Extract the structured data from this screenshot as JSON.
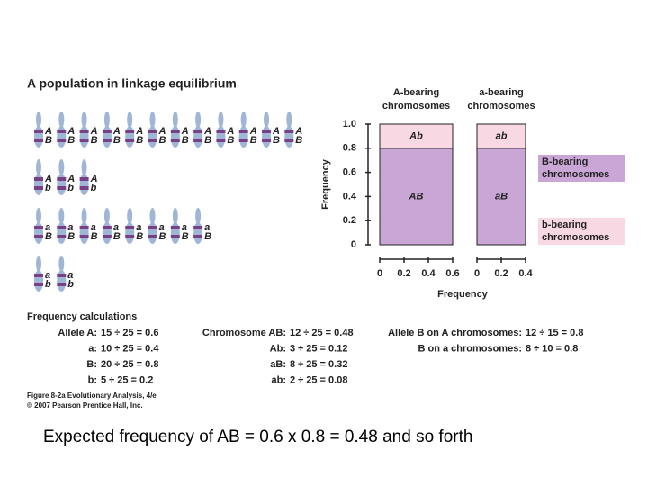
{
  "figure": {
    "title": "A population in linkage equilibrium",
    "chromosome_groups": [
      {
        "top": "A",
        "bottom": "B",
        "count": 12
      },
      {
        "top": "A",
        "bottom": "b",
        "count": 3
      },
      {
        "top": "a",
        "bottom": "B",
        "count": 8
      },
      {
        "top": "a",
        "bottom": "b",
        "count": 2
      }
    ],
    "mosaic": {
      "column_labels": [
        [
          "A-bearing",
          "chromosomes"
        ],
        [
          "a-bearing",
          "chromosomes"
        ]
      ],
      "row_labels": [
        [
          "B-bearing",
          "chromosomes"
        ],
        [
          "b-bearing",
          "chromosomes"
        ]
      ],
      "row_colors": [
        "#c9a6d6",
        "#f8d8e2"
      ],
      "ylabel": "Frequency",
      "xlabel": "Frequency",
      "ylim": [
        0,
        1
      ],
      "yticks": [
        0,
        0.2,
        0.4,
        0.6,
        0.8,
        {
          "value": 1,
          "label": "1.0"
        }
      ],
      "columns": [
        {
          "width": 0.6,
          "xticks": [
            0,
            0.2,
            0.4,
            0.6
          ],
          "cells": [
            {
              "label": "AB",
              "value": 0.8
            },
            {
              "label": "Ab",
              "value": 0.2
            }
          ]
        },
        {
          "width": 0.4,
          "xticks": [
            0,
            0.2,
            0.4
          ],
          "cells": [
            {
              "label": "aB",
              "value": 0.8
            },
            {
              "label": "ab",
              "value": 0.2
            }
          ]
        }
      ]
    },
    "calculations": {
      "heading": "Frequency calculations",
      "alleles": [
        [
          "Allele A:",
          "15 ÷ 25 = 0.6"
        ],
        [
          "a:",
          "10 ÷ 25 = 0.4"
        ],
        [
          "B:",
          "20 ÷ 25 = 0.8"
        ],
        [
          "b:",
          "5 ÷ 25 = 0.2"
        ]
      ],
      "chromosomes": [
        [
          "Chromosome AB:",
          "12 ÷ 25 = 0.48"
        ],
        [
          "Ab:",
          "3 ÷ 25 = 0.12"
        ],
        [
          "aB:",
          "8 ÷ 25 = 0.32"
        ],
        [
          "ab:",
          "2 ÷ 25 = 0.08"
        ]
      ],
      "conditional": [
        [
          "Allele B on A chromosomes:",
          "12 ÷ 15 = 0.8"
        ],
        [
          "B on a chromosomes:",
          "8 ÷ 10 = 0.8"
        ]
      ]
    },
    "credit": [
      "Figure 8-2a Evolutionary Analysis, 4/e",
      "© 2007 Pearson Prentice Hall, Inc."
    ]
  },
  "caption": "Expected frequency of AB = 0.6 x 0.8 = 0.48 and so forth"
}
